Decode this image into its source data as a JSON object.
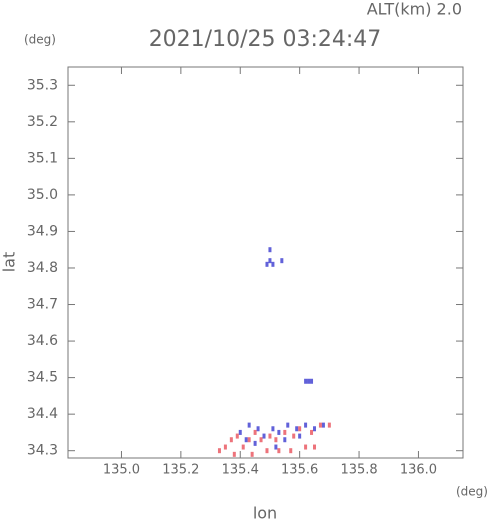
{
  "chart_data": {
    "type": "scatter",
    "title": "2021/10/25 03:24:47",
    "annotation": "ALT(km) 2.0",
    "x_label": "lon",
    "y_label": "lat",
    "x_unit": "(deg)",
    "y_unit": "(deg)",
    "xlim": [
      134.82,
      136.15
    ],
    "ylim": [
      34.28,
      35.35
    ],
    "xticks": [
      {
        "value": 135.0,
        "label": "135.0"
      },
      135.2,
      135.4,
      135.6,
      135.8,
      {
        "value": 136.0,
        "label": "136.0"
      }
    ],
    "yticks": [
      34.3,
      34.4,
      34.5,
      34.6,
      34.7,
      34.8,
      34.9,
      {
        "value": 35.0,
        "label": "35.0"
      },
      35.1,
      35.2,
      35.3
    ],
    "series": [
      {
        "color": "#3a3ad0",
        "x": [
          135.5,
          135.5,
          135.51,
          135.49,
          135.54,
          135.63,
          135.64,
          135.62,
          135.4,
          135.43,
          135.46,
          135.48,
          135.51,
          135.53,
          135.56,
          135.59,
          135.62,
          135.65,
          135.68,
          135.42,
          135.55,
          135.6,
          135.45,
          135.52
        ],
        "y": [
          34.85,
          34.82,
          34.81,
          34.81,
          34.82,
          34.49,
          34.49,
          34.49,
          34.35,
          34.37,
          34.36,
          34.34,
          34.36,
          34.35,
          34.37,
          34.36,
          34.37,
          34.36,
          34.37,
          34.33,
          34.33,
          34.34,
          34.32,
          34.31
        ]
      },
      {
        "color": "#e8505a",
        "x": [
          135.33,
          135.35,
          135.37,
          135.39,
          135.41,
          135.43,
          135.45,
          135.47,
          135.49,
          135.5,
          135.52,
          135.55,
          135.57,
          135.58,
          135.6,
          135.62,
          135.64,
          135.67,
          135.7,
          135.38,
          135.44,
          135.53,
          135.65
        ],
        "y": [
          34.3,
          34.31,
          34.33,
          34.34,
          34.31,
          34.33,
          34.35,
          34.33,
          34.3,
          34.34,
          34.33,
          34.35,
          34.3,
          34.34,
          34.36,
          34.31,
          34.35,
          34.37,
          34.37,
          34.29,
          34.29,
          34.3,
          34.31
        ]
      }
    ]
  }
}
